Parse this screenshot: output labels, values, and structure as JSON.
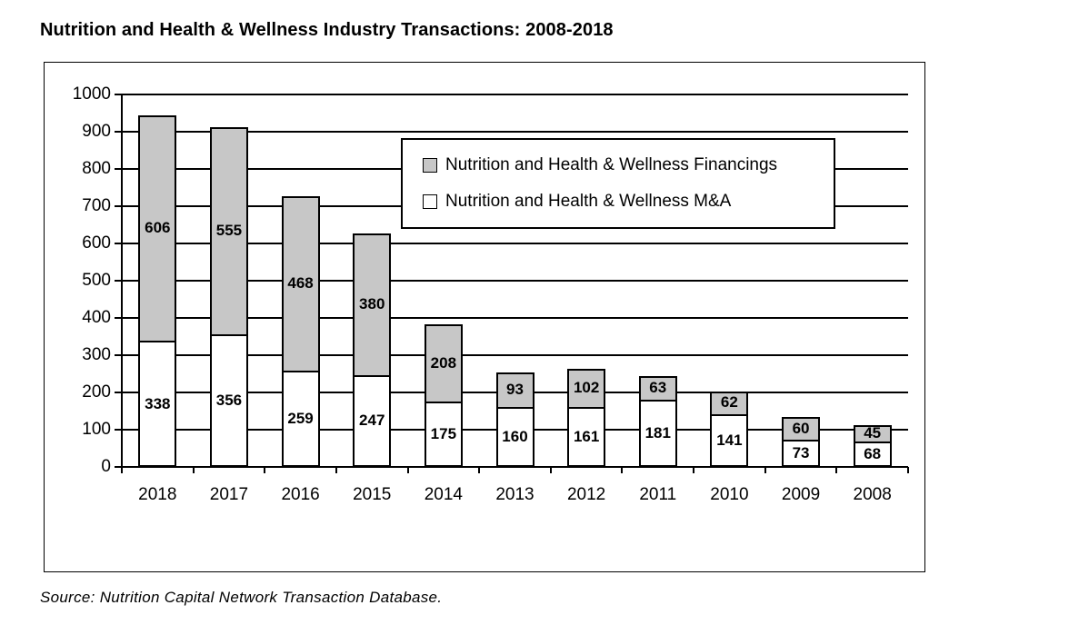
{
  "title": "Nutrition and Health & Wellness Industry Transactions: 2008-2018",
  "source": "Source: Nutrition Capital Network Transaction Database.",
  "legend": {
    "items": [
      {
        "label": "Nutrition and Health & Wellness Financings",
        "color": "#c7c7c7"
      },
      {
        "label": "Nutrition and Health & Wellness M&A",
        "color": "#ffffff"
      }
    ]
  },
  "colors": {
    "financings_fill": "#c7c7c7",
    "mna_fill": "#ffffff",
    "axis": "#000000",
    "background": "#ffffff"
  },
  "chart_data": {
    "type": "bar",
    "stacked": true,
    "title": "Nutrition and Health & Wellness Industry Transactions: 2008-2018",
    "categories": [
      "2018",
      "2017",
      "2016",
      "2015",
      "2014",
      "2013",
      "2012",
      "2011",
      "2010",
      "2009",
      "2008"
    ],
    "series": [
      {
        "name": "Nutrition and Health & Wellness M&A",
        "color": "#ffffff",
        "values": [
          338,
          356,
          259,
          247,
          175,
          160,
          161,
          181,
          141,
          73,
          68
        ]
      },
      {
        "name": "Nutrition and Health & Wellness Financings",
        "color": "#c7c7c7",
        "values": [
          606,
          555,
          468,
          380,
          208,
          93,
          102,
          63,
          62,
          60,
          45
        ]
      }
    ],
    "totals": [
      944,
      911,
      727,
      627,
      383,
      253,
      263,
      244,
      203,
      133,
      113
    ],
    "xlabel": "",
    "ylabel": "",
    "ylim": [
      0,
      1000
    ],
    "yticks": [
      0,
      100,
      200,
      300,
      400,
      500,
      600,
      700,
      800,
      900,
      1000
    ],
    "grid": true,
    "bar_labels": true,
    "legend_position": "upper-right-inside"
  }
}
